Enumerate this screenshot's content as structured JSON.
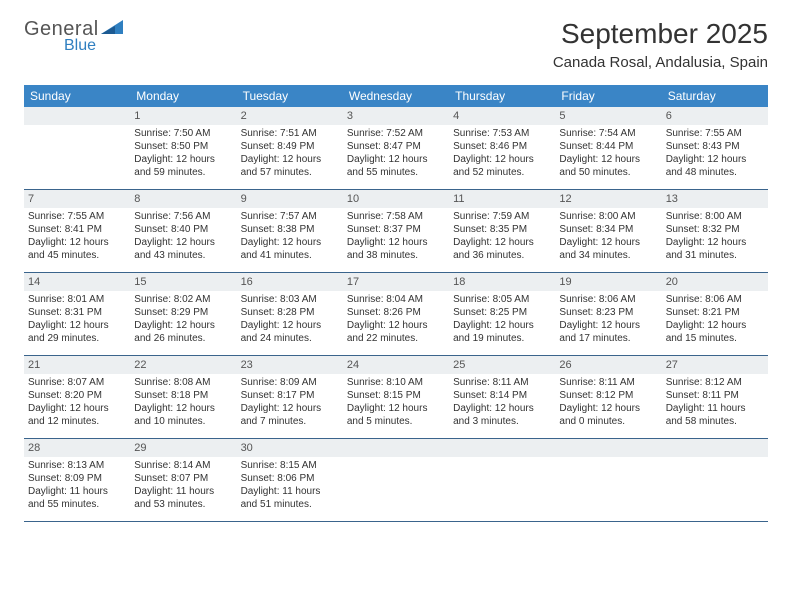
{
  "brand": {
    "text1": "General",
    "text2": "Blue"
  },
  "title": "September 2025",
  "location": "Canada Rosal, Andalusia, Spain",
  "colors": {
    "header_bg": "#3a85c6",
    "header_text": "#ffffff",
    "daynum_bg": "#eceff1",
    "row_border": "#3a648c",
    "brand_blue": "#2f7fc0"
  },
  "day_names": [
    "Sunday",
    "Monday",
    "Tuesday",
    "Wednesday",
    "Thursday",
    "Friday",
    "Saturday"
  ],
  "weeks": [
    [
      null,
      {
        "n": "1",
        "sunrise": "7:50 AM",
        "sunset": "8:50 PM",
        "daylight": "12 hours and 59 minutes."
      },
      {
        "n": "2",
        "sunrise": "7:51 AM",
        "sunset": "8:49 PM",
        "daylight": "12 hours and 57 minutes."
      },
      {
        "n": "3",
        "sunrise": "7:52 AM",
        "sunset": "8:47 PM",
        "daylight": "12 hours and 55 minutes."
      },
      {
        "n": "4",
        "sunrise": "7:53 AM",
        "sunset": "8:46 PM",
        "daylight": "12 hours and 52 minutes."
      },
      {
        "n": "5",
        "sunrise": "7:54 AM",
        "sunset": "8:44 PM",
        "daylight": "12 hours and 50 minutes."
      },
      {
        "n": "6",
        "sunrise": "7:55 AM",
        "sunset": "8:43 PM",
        "daylight": "12 hours and 48 minutes."
      }
    ],
    [
      {
        "n": "7",
        "sunrise": "7:55 AM",
        "sunset": "8:41 PM",
        "daylight": "12 hours and 45 minutes."
      },
      {
        "n": "8",
        "sunrise": "7:56 AM",
        "sunset": "8:40 PM",
        "daylight": "12 hours and 43 minutes."
      },
      {
        "n": "9",
        "sunrise": "7:57 AM",
        "sunset": "8:38 PM",
        "daylight": "12 hours and 41 minutes."
      },
      {
        "n": "10",
        "sunrise": "7:58 AM",
        "sunset": "8:37 PM",
        "daylight": "12 hours and 38 minutes."
      },
      {
        "n": "11",
        "sunrise": "7:59 AM",
        "sunset": "8:35 PM",
        "daylight": "12 hours and 36 minutes."
      },
      {
        "n": "12",
        "sunrise": "8:00 AM",
        "sunset": "8:34 PM",
        "daylight": "12 hours and 34 minutes."
      },
      {
        "n": "13",
        "sunrise": "8:00 AM",
        "sunset": "8:32 PM",
        "daylight": "12 hours and 31 minutes."
      }
    ],
    [
      {
        "n": "14",
        "sunrise": "8:01 AM",
        "sunset": "8:31 PM",
        "daylight": "12 hours and 29 minutes."
      },
      {
        "n": "15",
        "sunrise": "8:02 AM",
        "sunset": "8:29 PM",
        "daylight": "12 hours and 26 minutes."
      },
      {
        "n": "16",
        "sunrise": "8:03 AM",
        "sunset": "8:28 PM",
        "daylight": "12 hours and 24 minutes."
      },
      {
        "n": "17",
        "sunrise": "8:04 AM",
        "sunset": "8:26 PM",
        "daylight": "12 hours and 22 minutes."
      },
      {
        "n": "18",
        "sunrise": "8:05 AM",
        "sunset": "8:25 PM",
        "daylight": "12 hours and 19 minutes."
      },
      {
        "n": "19",
        "sunrise": "8:06 AM",
        "sunset": "8:23 PM",
        "daylight": "12 hours and 17 minutes."
      },
      {
        "n": "20",
        "sunrise": "8:06 AM",
        "sunset": "8:21 PM",
        "daylight": "12 hours and 15 minutes."
      }
    ],
    [
      {
        "n": "21",
        "sunrise": "8:07 AM",
        "sunset": "8:20 PM",
        "daylight": "12 hours and 12 minutes."
      },
      {
        "n": "22",
        "sunrise": "8:08 AM",
        "sunset": "8:18 PM",
        "daylight": "12 hours and 10 minutes."
      },
      {
        "n": "23",
        "sunrise": "8:09 AM",
        "sunset": "8:17 PM",
        "daylight": "12 hours and 7 minutes."
      },
      {
        "n": "24",
        "sunrise": "8:10 AM",
        "sunset": "8:15 PM",
        "daylight": "12 hours and 5 minutes."
      },
      {
        "n": "25",
        "sunrise": "8:11 AM",
        "sunset": "8:14 PM",
        "daylight": "12 hours and 3 minutes."
      },
      {
        "n": "26",
        "sunrise": "8:11 AM",
        "sunset": "8:12 PM",
        "daylight": "12 hours and 0 minutes."
      },
      {
        "n": "27",
        "sunrise": "8:12 AM",
        "sunset": "8:11 PM",
        "daylight": "11 hours and 58 minutes."
      }
    ],
    [
      {
        "n": "28",
        "sunrise": "8:13 AM",
        "sunset": "8:09 PM",
        "daylight": "11 hours and 55 minutes."
      },
      {
        "n": "29",
        "sunrise": "8:14 AM",
        "sunset": "8:07 PM",
        "daylight": "11 hours and 53 minutes."
      },
      {
        "n": "30",
        "sunrise": "8:15 AM",
        "sunset": "8:06 PM",
        "daylight": "11 hours and 51 minutes."
      },
      null,
      null,
      null,
      null
    ]
  ],
  "labels": {
    "sunrise": "Sunrise:",
    "sunset": "Sunset:",
    "daylight": "Daylight:"
  }
}
